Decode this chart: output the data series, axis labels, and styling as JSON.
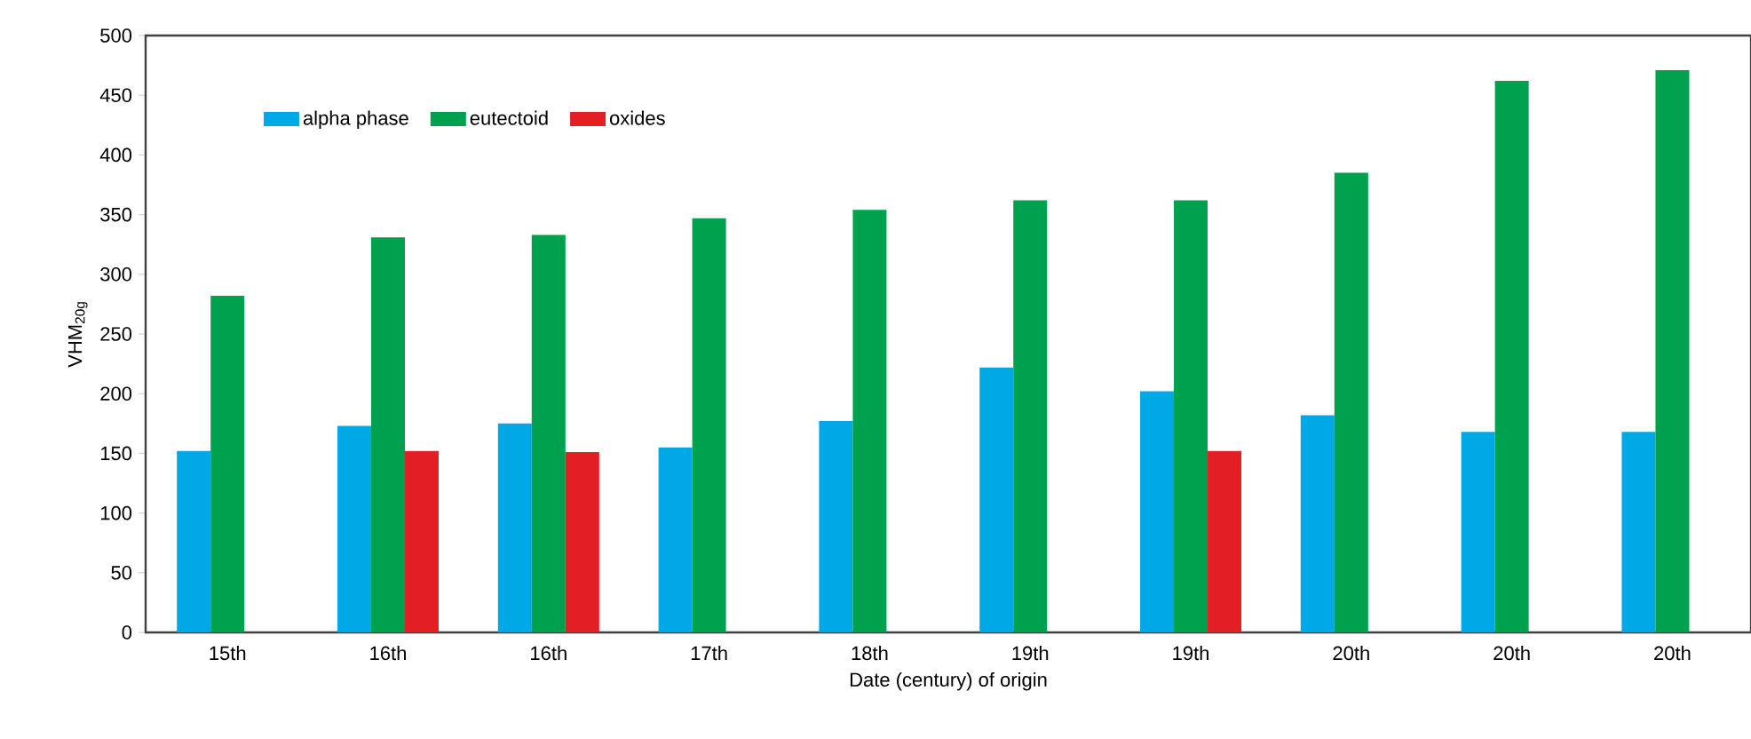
{
  "chart_data": {
    "type": "bar",
    "xlabel": "Date (century) of origin",
    "ylabel": "VHM$_{20g}$",
    "categories": [
      "15th",
      "16th",
      "16th",
      "17th",
      "18th",
      "19th",
      "19th",
      "20th",
      "20th",
      "20th"
    ],
    "series": [
      {
        "name": "alpha phase",
        "color": "#00a8e6",
        "values": [
          152,
          173,
          175,
          155,
          177,
          222,
          202,
          182,
          168,
          168
        ]
      },
      {
        "name": "eutectoid",
        "color": "#00a14e",
        "values": [
          282,
          331,
          333,
          347,
          354,
          362,
          362,
          385,
          462,
          471
        ]
      },
      {
        "name": "oxides",
        "color": "#e31e24",
        "values": [
          null,
          152,
          151,
          null,
          null,
          null,
          152,
          null,
          null,
          null
        ]
      }
    ],
    "ylim": [
      0,
      500
    ],
    "yticks": [
      0,
      50,
      100,
      150,
      200,
      250,
      300,
      350,
      400,
      450,
      500
    ],
    "legend": "top left"
  }
}
